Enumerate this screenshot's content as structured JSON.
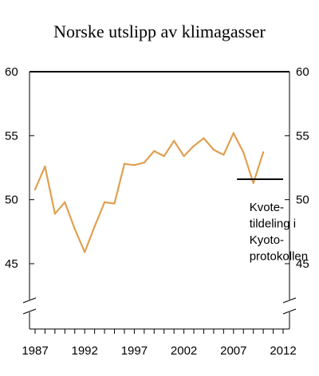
{
  "chart_data": {
    "type": "line",
    "title": "Norske utslipp av klimagasser",
    "xlabel": "",
    "ylabel": "",
    "xlim": [
      1986.5,
      2012
    ],
    "ylim": [
      40,
      60
    ],
    "x_ticks": [
      "1987",
      "1992",
      "1997",
      "2002",
      "2007",
      "2012"
    ],
    "y_ticks": [
      "60",
      "55",
      "50",
      "45"
    ],
    "axis_break": true,
    "series": [
      {
        "color": "#e0a050",
        "points": [
          {
            "x": 1987,
            "y": 50.8
          },
          {
            "x": 1988,
            "y": 52.6
          },
          {
            "x": 1989,
            "y": 48.9
          },
          {
            "x": 1990,
            "y": 49.8
          },
          {
            "x": 1991,
            "y": 47.7
          },
          {
            "x": 1992,
            "y": 45.9
          },
          {
            "x": 1993,
            "y": 47.9
          },
          {
            "x": 1994,
            "y": 49.8
          },
          {
            "x": 1995,
            "y": 49.7
          },
          {
            "x": 1996,
            "y": 52.8
          },
          {
            "x": 1997,
            "y": 52.7
          },
          {
            "x": 1998,
            "y": 52.9
          },
          {
            "x": 1999,
            "y": 53.8
          },
          {
            "x": 2000,
            "y": 53.4
          },
          {
            "x": 2001,
            "y": 54.6
          },
          {
            "x": 2002,
            "y": 53.4
          },
          {
            "x": 2003,
            "y": 54.2
          },
          {
            "x": 2004,
            "y": 54.8
          },
          {
            "x": 2005,
            "y": 53.9
          },
          {
            "x": 2006,
            "y": 53.5
          },
          {
            "x": 2007,
            "y": 55.2
          },
          {
            "x": 2008,
            "y": 53.7
          },
          {
            "x": 2009,
            "y": 51.3
          },
          {
            "x": 2010,
            "y": 53.7
          }
        ]
      }
    ],
    "reference_lines": [
      {
        "y": 51.6,
        "x_from": 2008,
        "x_to": 2012,
        "color": "#000000"
      }
    ],
    "annotation": {
      "lines": [
        "Kvote-",
        "tildeling i",
        "Kyoto-",
        "protokollen"
      ],
      "x": 2008.6,
      "y": 49.1
    },
    "grid": false,
    "legend": "none"
  }
}
